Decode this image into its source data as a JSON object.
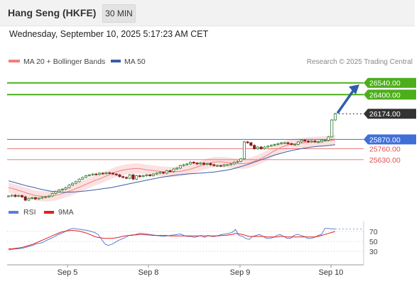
{
  "header": {
    "title": "Hang Seng (HKFE)",
    "timeframe": "30 MIN"
  },
  "datetime": "Wednesday, September 10, 2025 5:17:23 AM CET",
  "credit": "Research © 2025 Trading Central",
  "legend": {
    "ma20_label": "MA 20 + Bollinger Bands",
    "ma50_label": "MA 50",
    "rsi_label": "RSI",
    "rsi_ma_label": "9MA"
  },
  "colors": {
    "ma20": "#f08080",
    "ma50": "#3a5ea8",
    "bollinger_fill": "#fbe1e1",
    "candle": "#2e7d32",
    "resistance": "#4caf1a",
    "support_blue": "#3f6fd8",
    "support_red": "#e05050",
    "current": "#333333",
    "rsi": "#5b7fd6",
    "rsi_ma": "#e02020"
  },
  "chart_data": [
    {
      "type": "line",
      "title": "Hang Seng (HKFE) 30 MIN",
      "x_ticks": [
        "Sep 5",
        "Sep 8",
        "Sep 9",
        "Sep 10"
      ],
      "y_range": [
        25150,
        26680
      ],
      "close_series": [
        25200,
        25210,
        25195,
        25205,
        25190,
        25150,
        25170,
        25180,
        25165,
        25175,
        25185,
        25190,
        25200,
        25230,
        25250,
        25270,
        25280,
        25300,
        25330,
        25350,
        25370,
        25400,
        25420,
        25440,
        25450,
        25460,
        25455,
        25470,
        25465,
        25475,
        25470,
        25460,
        25450,
        25430,
        25420,
        25410,
        25450,
        25400,
        25440,
        25430,
        25440,
        25450,
        25440,
        25460,
        25470,
        25480,
        25470,
        25500,
        25490,
        25520,
        25530,
        25560,
        25570,
        25580,
        25600,
        25590,
        25580,
        25590,
        25575,
        25585,
        25570,
        25560,
        25560,
        25555,
        25570,
        25570,
        25580,
        25600,
        25610,
        25640,
        25840,
        25830,
        25800,
        25760,
        25780,
        25760,
        25780,
        25790,
        25800,
        25810,
        25820,
        25830,
        25830,
        25820,
        25810,
        25810,
        25840,
        25860,
        25850,
        25840,
        25850,
        25840,
        25840,
        25860,
        25860,
        25900,
        26100,
        26174
      ],
      "ma20": [
        25300,
        25290,
        25275,
        25260,
        25245,
        25230,
        25215,
        25205,
        25200,
        25195,
        25195,
        25200,
        25210,
        25220,
        25235,
        25250,
        25265,
        25285,
        25305,
        25325,
        25345,
        25365,
        25385,
        25400,
        25420,
        25440,
        25460,
        25480,
        25495,
        25505,
        25515,
        25520,
        25525,
        25525,
        25520,
        25510,
        25505,
        25500,
        25495,
        25490,
        25485,
        25485,
        25485,
        25490,
        25495,
        25505,
        25515,
        25530,
        25545,
        25560,
        25575,
        25590,
        25600,
        25605,
        25605,
        25600,
        25595,
        25590,
        25585,
        25583,
        25583,
        25590,
        25605,
        25620,
        25640,
        25665,
        25690,
        25720,
        25745,
        25770,
        25790,
        25805,
        25815,
        25820,
        25825,
        25830,
        25835,
        25840,
        25842,
        25845,
        25848,
        25852,
        25858,
        25866
      ],
      "ma50": [
        25380,
        25360,
        25340,
        25320,
        25305,
        25285,
        25270,
        25258,
        25250,
        25245,
        25245,
        25248,
        25255,
        25262,
        25270,
        25280,
        25290,
        25300,
        25315,
        25330,
        25345,
        25360,
        25375,
        25390,
        25405,
        25418,
        25430,
        25440,
        25450,
        25457,
        25463,
        25468,
        25473,
        25478,
        25485,
        25495,
        25505,
        25520,
        25540,
        25560,
        25585,
        25610,
        25635,
        25660,
        25685,
        25705,
        25725,
        25742,
        25755,
        25768,
        25778,
        25786,
        25792,
        25798,
        25808
      ],
      "series": [
        {
          "name": "MA 20 + Bollinger Bands"
        },
        {
          "name": "MA 50"
        }
      ],
      "levels": [
        {
          "value": 26540.0,
          "label": "26540.00",
          "kind": "resistance"
        },
        {
          "value": 26400.0,
          "label": "26400.00",
          "kind": "resistance"
        },
        {
          "value": 26174.0,
          "label": "26174.00",
          "kind": "current"
        },
        {
          "value": 25870.0,
          "label": "25870.00",
          "kind": "pivot"
        },
        {
          "value": 25760.0,
          "label": "25760.00",
          "kind": "support"
        },
        {
          "value": 25630.0,
          "label": "25630.00",
          "kind": "support"
        }
      ],
      "grid": false,
      "legend_placement": "top-left"
    },
    {
      "type": "line",
      "y_range": [
        10,
        90
      ],
      "y_ticks": [
        70,
        50,
        30
      ],
      "rsi": [
        33,
        34,
        35,
        35,
        36,
        38,
        40,
        42,
        45,
        46,
        48,
        52,
        55,
        58,
        62,
        65,
        68,
        72,
        75,
        76,
        75,
        74,
        73,
        72,
        70,
        68,
        64,
        55,
        45,
        42,
        44,
        48,
        52,
        55,
        58,
        62,
        62,
        64,
        66,
        66,
        65,
        64,
        63,
        62,
        61,
        60,
        61,
        62,
        63,
        64,
        65,
        62,
        60,
        60,
        58,
        60,
        62,
        58,
        62,
        60,
        60,
        62,
        64,
        65,
        66,
        68,
        74,
        62,
        60,
        56,
        54,
        60,
        62,
        64,
        60,
        56,
        56,
        58,
        62,
        64,
        60,
        56,
        56,
        62,
        64,
        62,
        60,
        56,
        56,
        58,
        62,
        64,
        76,
        76,
        75,
        75
      ],
      "rsi_ma": [
        35,
        35,
        36,
        37,
        38,
        40,
        42,
        44,
        47,
        50,
        53,
        56,
        59,
        62,
        65,
        68,
        70,
        71,
        72,
        72,
        71,
        70,
        68,
        66,
        63,
        60,
        58,
        57,
        56,
        56,
        56,
        57,
        58,
        60,
        61,
        62,
        63,
        63,
        64,
        64,
        63,
        63,
        62,
        62,
        62,
        62,
        62,
        61,
        61,
        61,
        61,
        61,
        61,
        61,
        61,
        61,
        61,
        61,
        61,
        61,
        61,
        61,
        62,
        62,
        63,
        64,
        66,
        65,
        64,
        62,
        60,
        60,
        60,
        60,
        60,
        59,
        59,
        59,
        59,
        60,
        60,
        59,
        59,
        59,
        59,
        59,
        59,
        59,
        59,
        59,
        60,
        62,
        64,
        66,
        68,
        70
      ],
      "series": [
        {
          "name": "RSI"
        },
        {
          "name": "9MA"
        }
      ]
    }
  ]
}
